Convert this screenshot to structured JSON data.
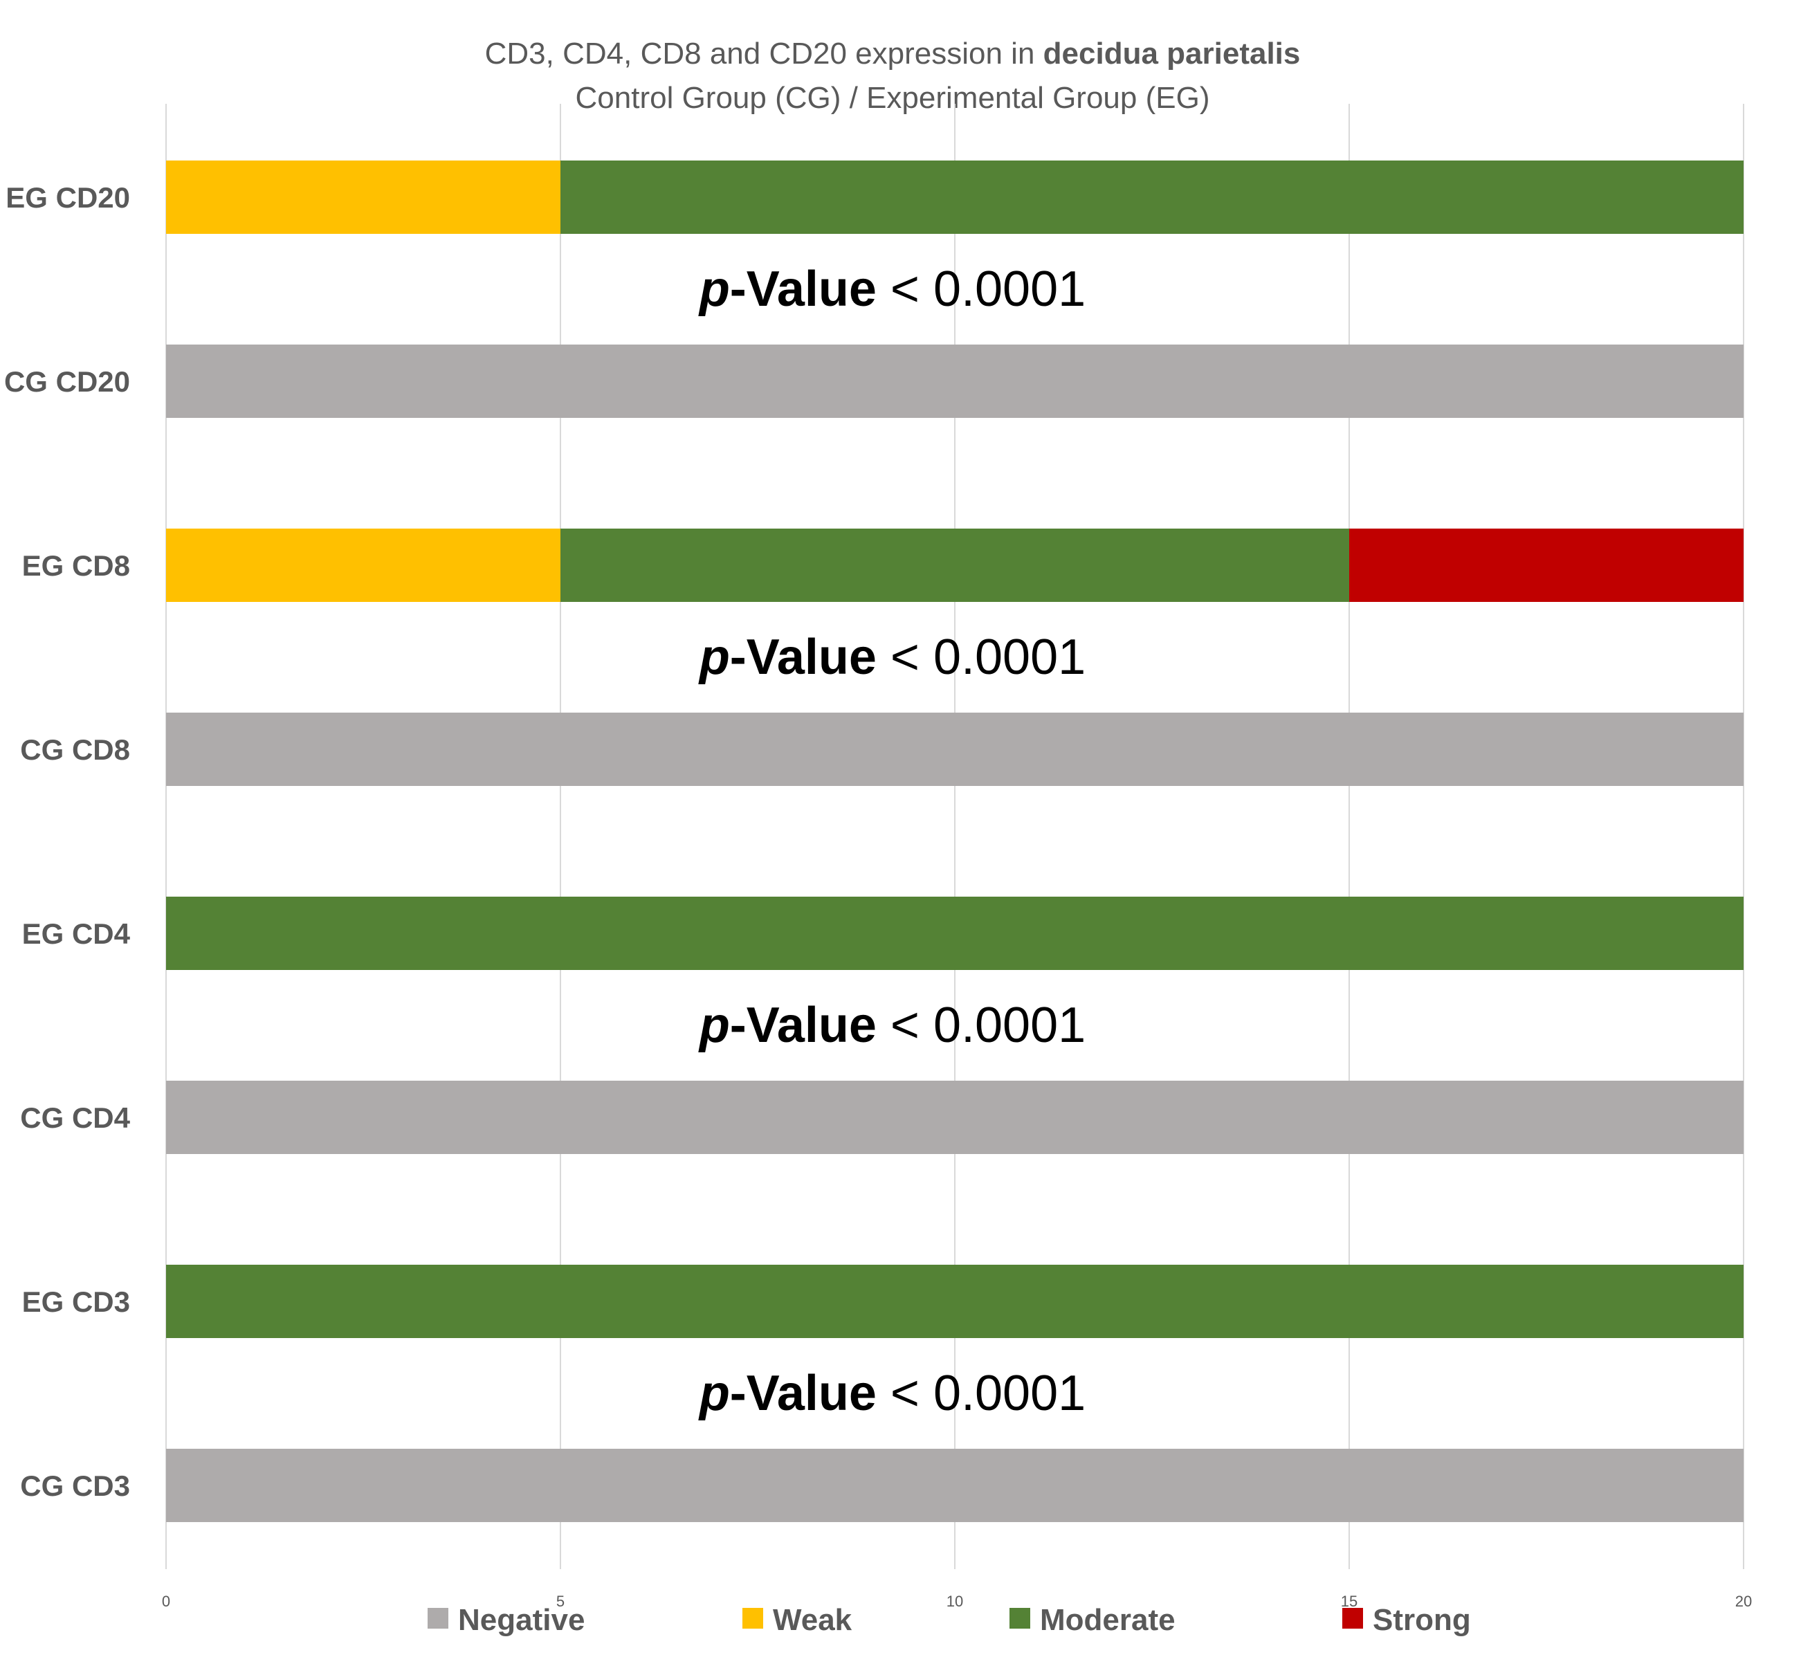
{
  "chart_data": {
    "type": "bar",
    "orientation": "horizontal",
    "stacked": true,
    "title": {
      "line1_prefix": "CD3, CD4, CD8 and CD20 expression in ",
      "line1_bold": "decidua parietalis",
      "line2": "Control Group (CG) / Experimental Group (EG)"
    },
    "categories": [
      "EG CD20",
      "CG CD20",
      "EG CD8",
      "CG CD8",
      "EG CD4",
      "CG CD4",
      "EG CD3",
      "CG CD3"
    ],
    "series": [
      {
        "name": "Negative",
        "color": "#AEABAB",
        "values": [
          0,
          20,
          0,
          20,
          0,
          20,
          0,
          20
        ]
      },
      {
        "name": "Weak",
        "color": "#FFC000",
        "values": [
          5,
          0,
          5,
          0,
          0,
          0,
          0,
          0
        ]
      },
      {
        "name": "Moderate",
        "color": "#548235",
        "values": [
          15,
          0,
          10,
          0,
          20,
          0,
          20,
          0
        ]
      },
      {
        "name": "Strong",
        "color": "#C00000",
        "values": [
          0,
          0,
          5,
          0,
          0,
          0,
          0,
          0
        ]
      }
    ],
    "xlim": [
      0,
      20
    ],
    "xticks": [
      0,
      5,
      10,
      15,
      20
    ],
    "xtick_labels": [
      "0",
      "5",
      "10",
      "15",
      "20"
    ],
    "grid": true,
    "legend_position": "bottom",
    "annotations": [
      {
        "between": [
          "EG CD20",
          "CG CD20"
        ],
        "italic": "p",
        "bold": "-Value",
        "rest": " < 0.0001"
      },
      {
        "between": [
          "EG CD8",
          "CG CD8"
        ],
        "italic": "p",
        "bold": "-Value",
        "rest": " < 0.0001"
      },
      {
        "between": [
          "EG CD4",
          "CG CD4"
        ],
        "italic": "p",
        "bold": "-Value",
        "rest": " < 0.0001"
      },
      {
        "between": [
          "EG CD3",
          "CG CD3"
        ],
        "italic": "p",
        "bold": "-Value",
        "rest": " < 0.0001"
      }
    ]
  }
}
